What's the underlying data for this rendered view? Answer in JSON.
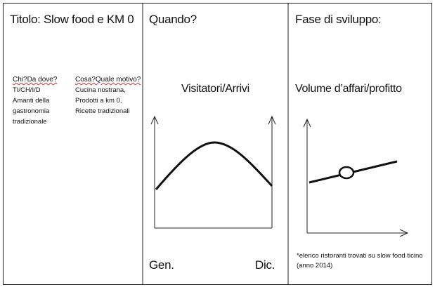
{
  "panels": [
    {
      "title": "Titolo: Slow food e KM 0",
      "columns": [
        {
          "heading": "Chi?Da dove?",
          "lines": [
            "TI/CH/I/D",
            "Amanti della",
            "gastronomia",
            "tradizionale"
          ]
        },
        {
          "heading": "Cosa?Quale motivo?",
          "lines": [
            "Cucina nostrana,",
            "Prodotti a km 0,",
            "Ricette tradizionali"
          ]
        }
      ]
    },
    {
      "title": "Quando?",
      "graph_title": "Visitatori/Arrivi",
      "x_start": "Gen.",
      "x_end": "Dic."
    },
    {
      "title": "Fase di sviluppo:",
      "graph_title": "Volume d’affari/profitto",
      "note": "*elenco ristoranti trovati su slow food ticino (anno 2014)"
    }
  ]
}
